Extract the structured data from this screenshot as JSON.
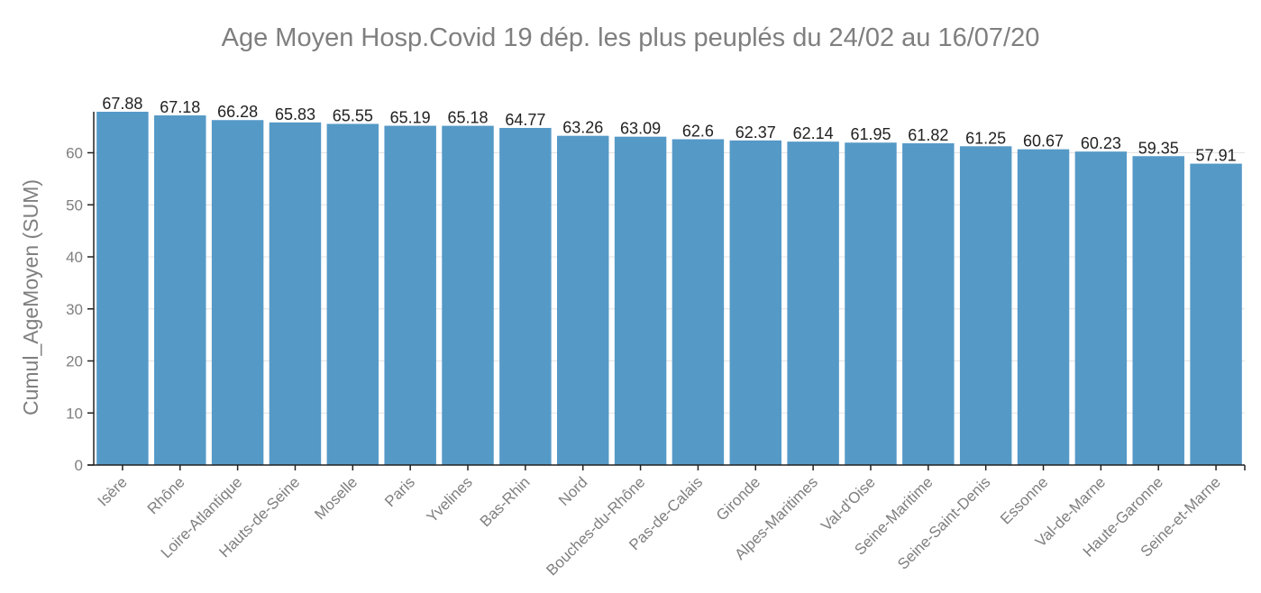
{
  "chart_data": {
    "type": "bar",
    "title": "Age Moyen Hosp.Covid 19 dép. les plus peuplés du 24/02 au 16/07/20",
    "xlabel": "",
    "ylabel": "Cumul_AgeMoyen (SUM)",
    "ylim": [
      0,
      67.88
    ],
    "yticks": [
      "0",
      "10",
      "20",
      "30",
      "40",
      "50",
      "60"
    ],
    "grid": true,
    "bar_color": "#5599c7",
    "categories": [
      "Isère",
      "Rhône",
      "Loire-Atlantique",
      "Hauts-de-Seine",
      "Moselle",
      "Paris",
      "Yvelines",
      "Bas-Rhin",
      "Nord",
      "Bouches-du-Rhône",
      "Pas-de-Calais",
      "Gironde",
      "Alpes-Maritimes",
      "Val-d'Oise",
      "Seine-Maritime",
      "Seine-Saint-Denis",
      "Essonne",
      "Val-de-Marne",
      "Haute-Garonne",
      "Seine-et-Marne"
    ],
    "values": [
      67.88,
      67.18,
      66.28,
      65.83,
      65.55,
      65.19,
      65.18,
      64.77,
      63.26,
      63.09,
      62.6,
      62.37,
      62.14,
      61.95,
      61.82,
      61.25,
      60.67,
      60.23,
      59.35,
      57.91
    ],
    "data_labels": [
      "67.88",
      "67.18",
      "66.28",
      "65.83",
      "65.55",
      "65.19",
      "65.18",
      "64.77",
      "63.26",
      "63.09",
      "62.6",
      "62.37",
      "62.14",
      "61.95",
      "61.82",
      "61.25",
      "60.67",
      "60.23",
      "59.35",
      "57.91"
    ]
  }
}
